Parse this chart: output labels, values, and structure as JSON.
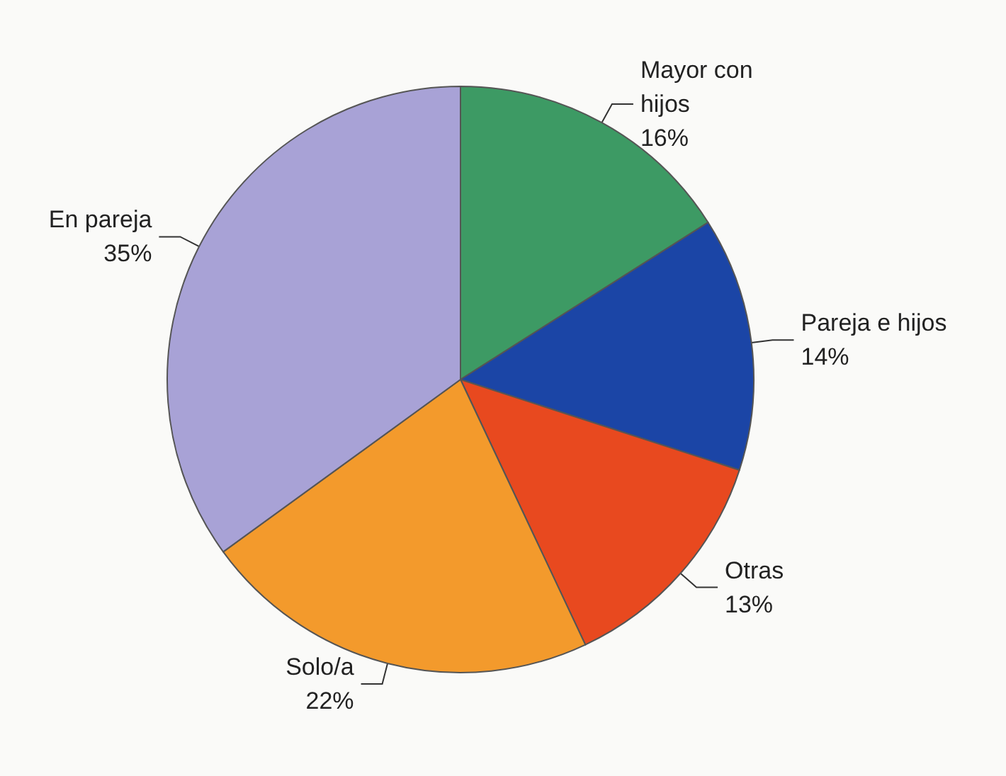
{
  "chart_data": {
    "type": "pie",
    "categories": [
      "Mayor con hijos",
      "Pareja e hijos",
      "Otras",
      "Solo/a",
      "En pareja"
    ],
    "values": [
      16,
      14,
      13,
      22,
      35
    ],
    "colors": [
      "#3d9a64",
      "#1b45a6",
      "#e8491f",
      "#f39a2c",
      "#a8a2d6"
    ],
    "value_labels": [
      "16%",
      "14%",
      "13%",
      "22%",
      "35%"
    ]
  }
}
